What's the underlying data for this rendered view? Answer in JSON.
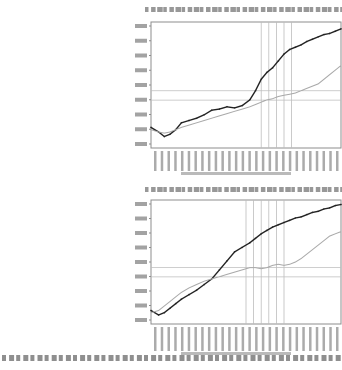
{
  "colors": {
    "background": "#ffffff",
    "frame": "#8c8c8c",
    "grid": "#bdbdbd",
    "main_series": "#222222",
    "secondary_series": "#a8a8a8",
    "axis_text": "#666666",
    "caption_text": "#444444"
  },
  "chart_data": [
    {
      "type": "line",
      "title": "",
      "xlabel": "",
      "ylabel": "",
      "grid": true,
      "vertical_markers": [
        0.58,
        0.62,
        0.66,
        0.7,
        0.74
      ],
      "horizontal_markers": [
        1.0
      ],
      "ylim": [
        0.5,
        1.6
      ],
      "x": [
        0.0,
        0.04,
        0.07,
        0.1,
        0.13,
        0.16,
        0.2,
        0.24,
        0.28,
        0.32,
        0.36,
        0.4,
        0.44,
        0.48,
        0.52,
        0.55,
        0.58,
        0.61,
        0.64,
        0.67,
        0.7,
        0.73,
        0.76,
        0.79,
        0.82,
        0.85,
        0.88,
        0.91,
        0.94,
        0.97,
        1.0
      ],
      "series": [
        {
          "values": [
            0.68,
            0.64,
            0.6,
            0.62,
            0.66,
            0.72,
            0.74,
            0.76,
            0.79,
            0.83,
            0.84,
            0.86,
            0.85,
            0.87,
            0.92,
            1.0,
            1.1,
            1.16,
            1.2,
            1.26,
            1.32,
            1.36,
            1.38,
            1.4,
            1.43,
            1.45,
            1.47,
            1.49,
            1.5,
            1.52,
            1.54
          ]
        },
        {
          "values": [
            0.66,
            0.64,
            0.63,
            0.64,
            0.66,
            0.68,
            0.7,
            0.72,
            0.74,
            0.76,
            0.78,
            0.8,
            0.82,
            0.84,
            0.86,
            0.88,
            0.9,
            0.92,
            0.93,
            0.95,
            0.96,
            0.97,
            0.98,
            1.0,
            1.02,
            1.04,
            1.06,
            1.1,
            1.14,
            1.18,
            1.22
          ]
        }
      ]
    },
    {
      "type": "line",
      "title": "",
      "xlabel": "",
      "ylabel": "",
      "grid": true,
      "vertical_markers": [
        0.5,
        0.54,
        0.58,
        0.62,
        0.66,
        0.7
      ],
      "horizontal_markers": [
        1.0
      ],
      "ylim": [
        0.5,
        1.6
      ],
      "x": [
        0.0,
        0.04,
        0.07,
        0.1,
        0.13,
        0.16,
        0.2,
        0.24,
        0.28,
        0.32,
        0.36,
        0.4,
        0.44,
        0.48,
        0.52,
        0.55,
        0.58,
        0.61,
        0.64,
        0.67,
        0.7,
        0.73,
        0.76,
        0.79,
        0.82,
        0.85,
        0.88,
        0.91,
        0.94,
        0.97,
        1.0
      ],
      "series": [
        {
          "values": [
            0.62,
            0.58,
            0.6,
            0.64,
            0.68,
            0.72,
            0.76,
            0.8,
            0.85,
            0.9,
            0.98,
            1.06,
            1.14,
            1.18,
            1.22,
            1.26,
            1.3,
            1.33,
            1.36,
            1.38,
            1.4,
            1.42,
            1.44,
            1.45,
            1.47,
            1.49,
            1.5,
            1.52,
            1.53,
            1.55,
            1.56
          ]
        },
        {
          "values": [
            0.6,
            0.62,
            0.66,
            0.7,
            0.74,
            0.78,
            0.82,
            0.85,
            0.88,
            0.9,
            0.92,
            0.94,
            0.96,
            0.98,
            1.0,
            1.0,
            0.99,
            1.0,
            1.02,
            1.03,
            1.02,
            1.03,
            1.05,
            1.08,
            1.12,
            1.16,
            1.2,
            1.24,
            1.28,
            1.3,
            1.32
          ]
        }
      ]
    }
  ]
}
